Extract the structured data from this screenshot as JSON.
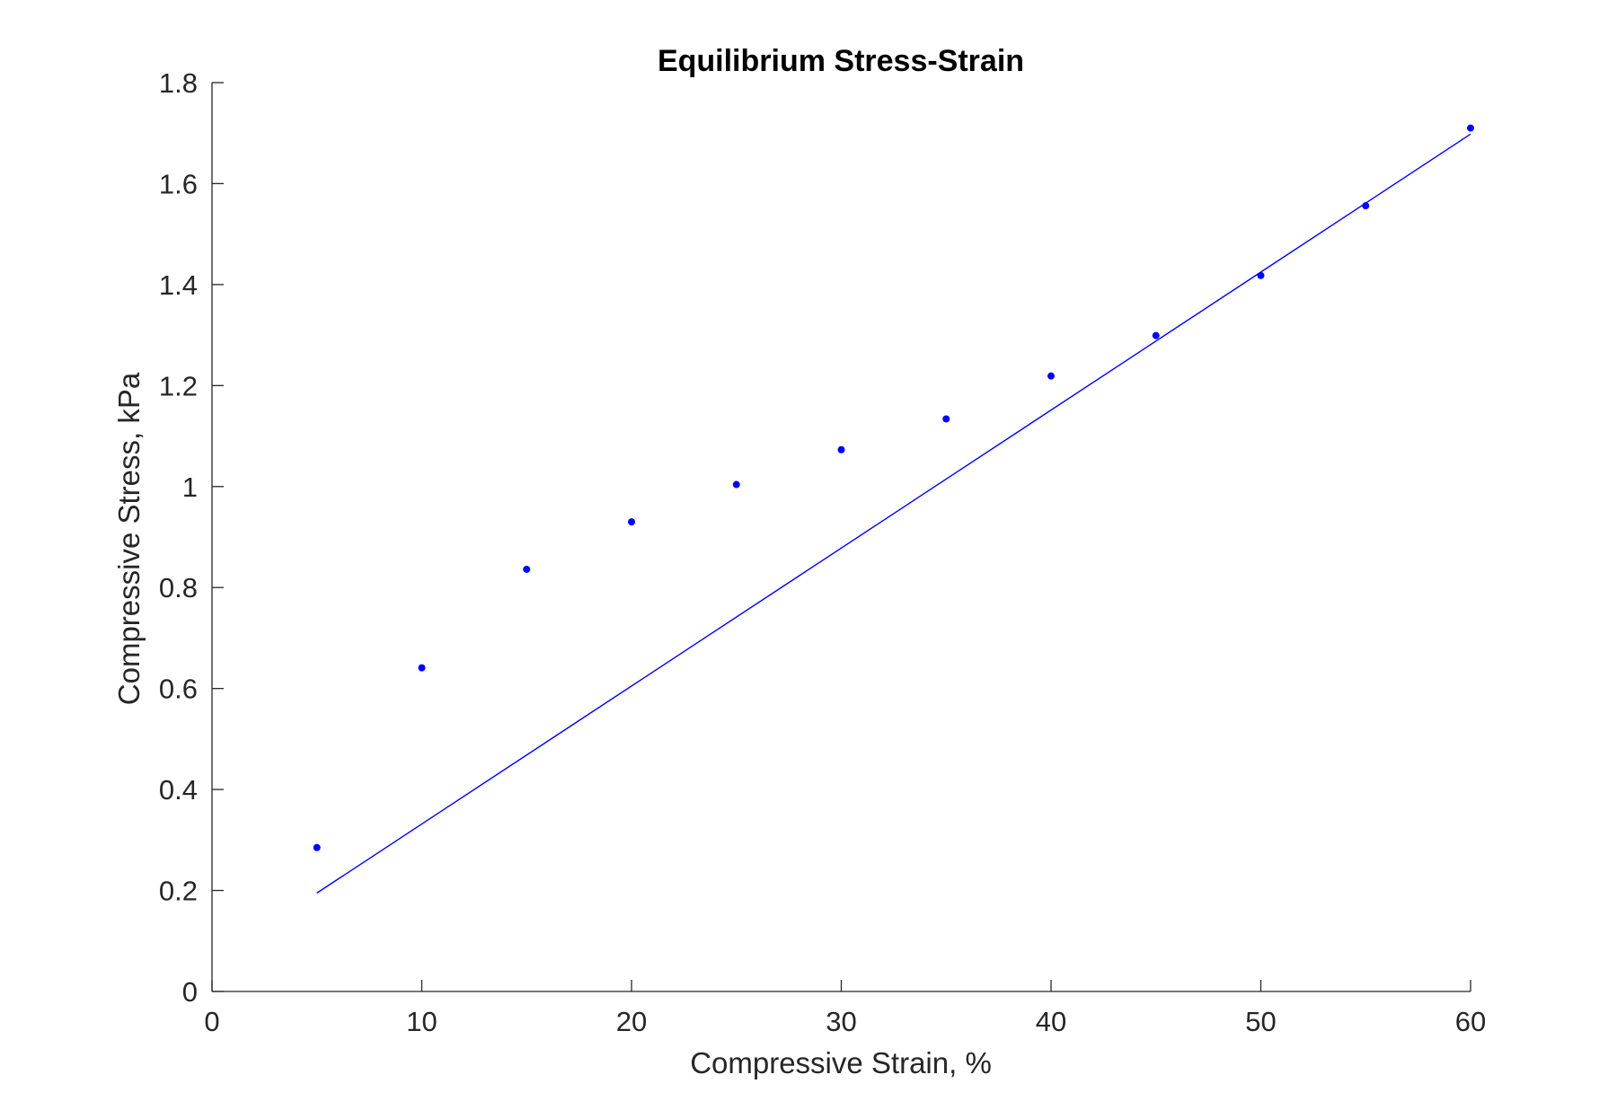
{
  "chart_data": {
    "type": "scatter",
    "title": "Equilibrium Stress-Strain",
    "xlabel": "Compressive Strain, %",
    "ylabel": "Compressive Stress, kPa",
    "xlim": [
      0,
      60
    ],
    "ylim": [
      0,
      1.8
    ],
    "x_ticks": [
      0,
      10,
      20,
      30,
      40,
      50,
      60
    ],
    "x_tick_labels": [
      "0",
      "10",
      "20",
      "30",
      "40",
      "50",
      "60"
    ],
    "y_ticks": [
      0,
      0.2,
      0.4,
      0.6,
      0.8,
      1.0,
      1.2,
      1.4,
      1.6,
      1.8
    ],
    "y_tick_labels": [
      "0",
      "0.2",
      "0.4",
      "0.6",
      "0.8",
      "1",
      "1.2",
      "1.4",
      "1.6",
      "1.8"
    ],
    "grid": false,
    "series": [
      {
        "type": "scatter",
        "color": "#0000ff",
        "x": [
          5,
          10,
          15,
          20,
          25,
          30,
          35,
          40,
          45,
          50,
          55,
          60
        ],
        "y": [
          0.285,
          0.641,
          0.836,
          0.93,
          1.004,
          1.073,
          1.134,
          1.219,
          1.299,
          1.418,
          1.556,
          1.71
        ]
      },
      {
        "type": "line",
        "color": "#0000ff",
        "x": [
          5,
          60
        ],
        "y": [
          0.195,
          1.698
        ]
      }
    ]
  }
}
